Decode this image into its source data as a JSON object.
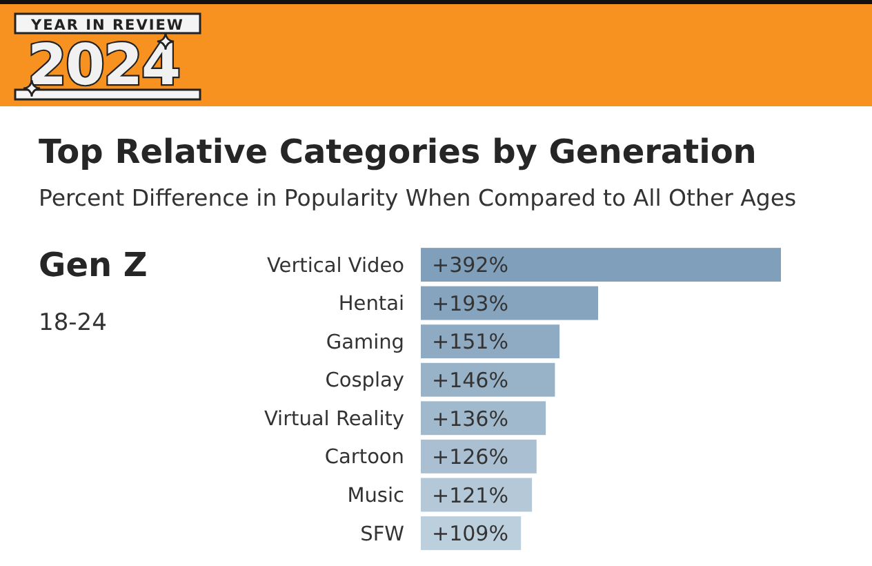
{
  "chart_data": {
    "type": "bar",
    "orientation": "horizontal",
    "title": "Top Relative Categories by Generation",
    "subtitle": "Percent Difference in Popularity When Compared to All Other Ages",
    "annotations": [
      "YEAR IN REVIEW",
      "2024",
      "Gen Z",
      "18-24"
    ],
    "categories": [
      "Vertical Video",
      "Hentai",
      "Gaming",
      "Cosplay",
      "Virtual Reality",
      "Cartoon",
      "Music",
      "SFW"
    ],
    "values": [
      392,
      193,
      151,
      146,
      136,
      126,
      121,
      109
    ],
    "value_labels": [
      "+392%",
      "+193%",
      "+151%",
      "+146%",
      "+136%",
      "+126%",
      "+121%",
      "+109%"
    ],
    "colors": [
      "#7f9fba",
      "#86a4bd",
      "#8fabc3",
      "#98b2c8",
      "#a1b9cd",
      "#aac0d2",
      "#b4c8d8",
      "#bccfdd"
    ],
    "tick_labels": "y"
  }
}
